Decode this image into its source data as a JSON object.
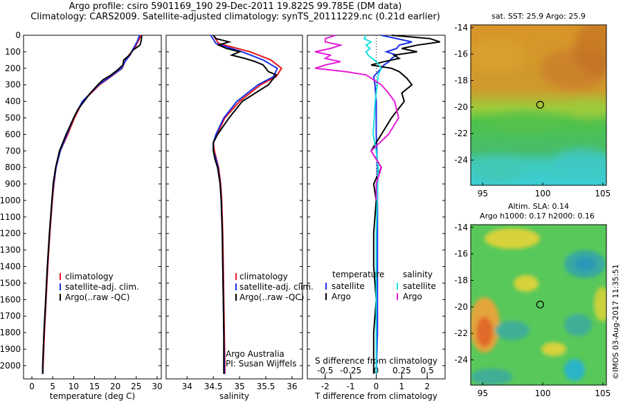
{
  "header": {
    "line1": "Argo profile: csiro 5901169_190 29-Dec-2011 19.822S 99.785E (DM data)",
    "line2": "Climatology: CARS2009. Satellite-adjusted climatology: synTS_20111229.nc (0.21d earlier)"
  },
  "footer": {
    "credit": "©IMOS 03-Aug-2017 11:35:51"
  },
  "colors": {
    "climatology": "#e8141a",
    "satellite": "#1a2ee8",
    "argo": "#000000",
    "sal_satellite": "#19e0e0",
    "sal_argo": "#e619d8"
  },
  "chart_data": [
    {
      "type": "line",
      "id": "temperature",
      "xlabel": "temperature (deg C)",
      "ylabel": "",
      "xlim": [
        -2,
        31
      ],
      "ylim": [
        2080,
        0
      ],
      "y_reversed": true,
      "xticks": [
        "0",
        "5",
        "10",
        "15",
        "20",
        "25",
        "30"
      ],
      "xtick_values": [
        0,
        5,
        10,
        15,
        20,
        25,
        30
      ],
      "yticks": [
        "0",
        "100",
        "200",
        "300",
        "400",
        "500",
        "600",
        "700",
        "800",
        "900",
        "1000",
        "1100",
        "1200",
        "1300",
        "1400",
        "1500",
        "1600",
        "1700",
        "1800",
        "1900",
        "2000"
      ],
      "ytick_values": [
        0,
        100,
        200,
        300,
        400,
        500,
        600,
        700,
        800,
        900,
        1000,
        1100,
        1200,
        1300,
        1400,
        1500,
        1600,
        1700,
        1800,
        1900,
        2000
      ],
      "legend": [
        "climatology",
        "satellite-adj. clim.",
        "Argo(..raw -QC)"
      ],
      "series": [
        {
          "name": "climatology",
          "color": "#e8141a",
          "depth": [
            0,
            40,
            80,
            120,
            160,
            200,
            250,
            300,
            400,
            500,
            600,
            700,
            800,
            900,
            1000,
            1200,
            1400,
            1600,
            1800,
            2000,
            2050
          ],
          "values": [
            26.2,
            25.4,
            24.6,
            23.2,
            22.3,
            21.6,
            19.0,
            16.2,
            12.2,
            10.2,
            8.6,
            6.8,
            5.8,
            5.3,
            4.9,
            4.3,
            3.8,
            3.4,
            3.0,
            2.7,
            2.6
          ]
        },
        {
          "name": "satellite-adj. clim.",
          "color": "#1a2ee8",
          "depth": [
            0,
            40,
            80,
            120,
            160,
            200,
            250,
            300,
            400,
            500,
            600,
            700,
            800,
            900,
            1000,
            1200,
            1400,
            1600,
            1800,
            2000,
            2050
          ],
          "values": [
            25.8,
            25.2,
            24.3,
            23.5,
            22.3,
            21.5,
            18.8,
            16.0,
            12.1,
            10.0,
            8.4,
            6.8,
            5.8,
            5.2,
            4.8,
            4.2,
            3.7,
            3.3,
            2.9,
            2.6,
            2.6
          ]
        },
        {
          "name": "Argo(..raw -QC)",
          "color": "#000000",
          "depth": [
            0,
            30,
            60,
            90,
            120,
            150,
            180,
            210,
            240,
            270,
            300,
            350,
            400,
            450,
            500,
            600,
            700,
            800,
            900,
            1000,
            1200,
            1400,
            1600,
            1800,
            2000,
            2050
          ],
          "values": [
            26.3,
            26.2,
            25.9,
            24.2,
            23.4,
            22.0,
            21.8,
            20.5,
            19.0,
            17.0,
            15.8,
            14.0,
            12.5,
            11.0,
            10.0,
            8.2,
            6.6,
            5.7,
            5.1,
            4.8,
            4.2,
            3.7,
            3.3,
            2.9,
            2.6,
            2.6
          ]
        }
      ]
    },
    {
      "type": "line",
      "id": "salinity",
      "xlabel": "salinity",
      "xlim": [
        33.6,
        36.2
      ],
      "ylim": [
        2080,
        0
      ],
      "y_reversed": true,
      "xticks": [
        "34",
        "34.5",
        "35",
        "35.5",
        "36"
      ],
      "xtick_values": [
        34,
        34.5,
        35,
        35.5,
        36
      ],
      "legend": [
        "climatology",
        "satellite-adj. clim.",
        "Argo(..raw -QC)"
      ],
      "annotation": [
        "Argo Australia",
        "PI: Susan Wijffels"
      ],
      "series": [
        {
          "name": "climatology",
          "color": "#e8141a",
          "depth": [
            0,
            50,
            100,
            150,
            200,
            250,
            300,
            400,
            500,
            600,
            650,
            700,
            750,
            800,
            900,
            1000,
            1200,
            1400,
            1600,
            1800,
            2000,
            2050
          ],
          "values": [
            34.5,
            34.6,
            35.2,
            35.6,
            35.8,
            35.7,
            35.4,
            35.0,
            34.72,
            34.57,
            34.5,
            34.52,
            34.56,
            34.6,
            34.64,
            34.66,
            34.68,
            34.69,
            34.7,
            34.71,
            34.72,
            34.72
          ]
        },
        {
          "name": "satellite-adj. clim.",
          "color": "#1a2ee8",
          "depth": [
            0,
            50,
            100,
            150,
            200,
            250,
            300,
            400,
            500,
            600,
            650,
            700,
            750,
            800,
            900,
            1000,
            1200,
            1400,
            1600,
            1800,
            2000,
            2050
          ],
          "values": [
            34.45,
            34.55,
            35.05,
            35.45,
            35.72,
            35.65,
            35.35,
            34.95,
            34.7,
            34.55,
            34.5,
            34.5,
            34.55,
            34.59,
            34.63,
            34.65,
            34.67,
            34.68,
            34.69,
            34.7,
            34.71,
            34.71
          ]
        },
        {
          "name": "Argo(..raw -QC)",
          "color": "#000000",
          "depth": [
            0,
            20,
            40,
            60,
            80,
            100,
            120,
            140,
            160,
            180,
            200,
            220,
            240,
            260,
            300,
            350,
            400,
            500,
            600,
            650,
            700,
            750,
            800,
            900,
            1000,
            1200,
            1400,
            1600,
            1800,
            2000,
            2050
          ],
          "values": [
            34.5,
            34.55,
            34.8,
            34.6,
            34.75,
            35.0,
            34.85,
            35.1,
            35.3,
            35.45,
            35.5,
            35.55,
            35.7,
            35.65,
            35.55,
            35.3,
            35.05,
            34.8,
            34.58,
            34.5,
            34.5,
            34.53,
            34.58,
            34.63,
            34.65,
            34.67,
            34.68,
            34.69,
            34.7,
            34.7,
            34.7
          ]
        }
      ]
    },
    {
      "type": "line",
      "id": "differences",
      "xlabel": "T difference from climatology",
      "xlabel_top": "S difference from climatology",
      "t_xlim": [
        -2.7,
        2.7
      ],
      "s_xlim": [
        -0.675,
        0.675
      ],
      "ylim": [
        2080,
        0
      ],
      "y_reversed": true,
      "xticks": [
        "-2",
        "-1",
        "0",
        "1",
        "2"
      ],
      "xtick_values": [
        -2,
        -1,
        0,
        1,
        2
      ],
      "s_ticks": [
        "-0.5",
        "-0.25",
        "0",
        "0.25",
        "0.5"
      ],
      "s_tick_values": [
        -0.5,
        -0.25,
        0,
        0.25,
        0.5
      ],
      "legend_temperature": {
        "heading": "temperature",
        "items": [
          "satellite",
          "Argo"
        ]
      },
      "legend_salinity": {
        "heading": "salinity",
        "items": [
          "satellite",
          "Argo"
        ]
      },
      "series": [
        {
          "name": "T satellite",
          "axis": "T",
          "color": "#1a2ee8",
          "depth": [
            0,
            40,
            60,
            80,
            100,
            120,
            140,
            160,
            180,
            200,
            250,
            300,
            400,
            600,
            800,
            1000,
            1400,
            1800,
            2050
          ],
          "values": [
            0.2,
            1.4,
            0.9,
            0.8,
            0.4,
            0.8,
            0.6,
            0.5,
            0.3,
            0.2,
            -0.1,
            -0.05,
            0.0,
            0.0,
            0.05,
            0.05,
            0.05,
            0.05,
            0.0
          ]
        },
        {
          "name": "T Argo",
          "axis": "T",
          "color": "#000000",
          "depth": [
            0,
            20,
            40,
            60,
            80,
            100,
            120,
            140,
            160,
            180,
            200,
            220,
            260,
            300,
            350,
            400,
            500,
            600,
            700,
            800,
            900,
            1000,
            1200,
            1400,
            1600,
            1800,
            2000,
            2050
          ],
          "values": [
            0.6,
            2.1,
            2.5,
            1.6,
            1.0,
            1.6,
            0.7,
            0.9,
            0.3,
            -0.2,
            0.6,
            0.9,
            1.2,
            1.4,
            1.0,
            1.1,
            0.6,
            0.2,
            -0.2,
            0.2,
            -0.1,
            0.0,
            -0.1,
            -0.1,
            0.0,
            -0.1,
            -0.1,
            -0.1
          ]
        },
        {
          "name": "S satellite",
          "axis": "S",
          "color": "#19e0e0",
          "depth": [
            0,
            20,
            40,
            60,
            80,
            100,
            120,
            160,
            200,
            240,
            300,
            400,
            500,
            600,
            700,
            800,
            1000,
            1200,
            1600,
            2050
          ],
          "values": [
            -0.1,
            -0.12,
            -0.05,
            -0.1,
            -0.06,
            -0.1,
            -0.08,
            0.0,
            0.05,
            0.02,
            0.01,
            -0.01,
            -0.02,
            -0.03,
            0.0,
            0.02,
            0.01,
            0.0,
            0.0,
            0.0
          ]
        },
        {
          "name": "S Argo",
          "axis": "S",
          "color": "#e619d8",
          "depth": [
            0,
            20,
            40,
            60,
            80,
            100,
            120,
            140,
            160,
            180,
            200,
            220,
            240,
            260,
            300,
            350,
            400,
            500,
            600,
            700,
            800,
            900,
            1000
          ],
          "values": [
            -0.4,
            -0.5,
            -0.5,
            -0.35,
            -0.45,
            -0.6,
            -0.45,
            -0.5,
            -0.35,
            -0.5,
            -0.6,
            -0.3,
            -0.1,
            -0.05,
            0.05,
            0.12,
            0.18,
            0.22,
            0.12,
            -0.05,
            0.05,
            0.0,
            0.0
          ]
        }
      ]
    },
    {
      "type": "heatmap",
      "id": "sst_map",
      "title": "sat. SST: 25.9 Argo: 25.9",
      "xticks": [
        "95",
        "100",
        "105"
      ],
      "xtick_values": [
        95,
        100,
        105
      ],
      "yticks": [
        "-14",
        "-16",
        "-18",
        "-20",
        "-22",
        "-24"
      ],
      "ytick_values": [
        -14,
        -16,
        -18,
        -20,
        -22,
        -24
      ],
      "xlim": [
        94,
        105.3
      ],
      "ylim": [
        -25.9,
        -13.8
      ],
      "marker": {
        "lon": 99.785,
        "lat": -19.822
      }
    },
    {
      "type": "heatmap",
      "id": "sla_map",
      "title": "Altim. SLA: 0.14",
      "subtitle": "Argo h1000: 0.17 h2000: 0.16",
      "xticks": [
        "95",
        "100",
        "105"
      ],
      "xtick_values": [
        95,
        100,
        105
      ],
      "yticks": [
        "-14",
        "-16",
        "-18",
        "-20",
        "-22",
        "-24"
      ],
      "ytick_values": [
        -14,
        -16,
        -18,
        -20,
        -22,
        -24
      ],
      "xlim": [
        94,
        105.3
      ],
      "ylim": [
        -25.9,
        -13.8
      ],
      "marker": {
        "lon": 99.785,
        "lat": -19.822
      }
    }
  ]
}
